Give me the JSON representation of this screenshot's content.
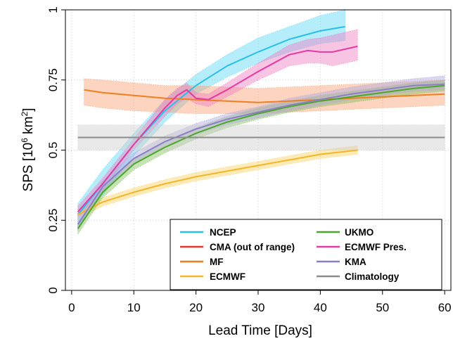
{
  "chart_data": {
    "type": "line",
    "title": "",
    "xlabel": "Lead Time [Days]",
    "ylabel_text": "SPS [10",
    "ylabel_sup1": "6",
    "ylabel_mid": " km",
    "ylabel_sup2": "2",
    "ylabel_end": "]",
    "xlim": [
      -1,
      61
    ],
    "ylim": [
      0,
      1
    ],
    "xticks": [
      0,
      10,
      20,
      30,
      40,
      50,
      60
    ],
    "xtick_labels": [
      "0",
      "10",
      "20",
      "30",
      "40",
      "50",
      "60"
    ],
    "yticks": [
      0,
      0.25,
      0.5,
      0.75,
      1
    ],
    "ytick_labels": [
      "0",
      "0.25",
      "0.5",
      "0.75",
      "1"
    ],
    "grid": true,
    "legend_placement": "bottom-right",
    "series": [
      {
        "name": "NCEP",
        "color": "#29bfe6",
        "band_color": "#5ad6f3",
        "x": [
          1,
          5,
          10,
          15,
          20,
          25,
          30,
          35,
          40,
          44
        ],
        "y": [
          0.27,
          0.38,
          0.52,
          0.64,
          0.73,
          0.8,
          0.85,
          0.895,
          0.925,
          0.94
        ],
        "lower": [
          0.23,
          0.34,
          0.48,
          0.6,
          0.7,
          0.76,
          0.81,
          0.85,
          0.88,
          0.89
        ],
        "upper": [
          0.31,
          0.43,
          0.56,
          0.68,
          0.77,
          0.84,
          0.9,
          0.94,
          0.98,
          1.0
        ]
      },
      {
        "name": "CMA (out of range)",
        "color": "#e8372f",
        "band_color": "#e8372f",
        "x": [],
        "y": [],
        "lower": [],
        "upper": []
      },
      {
        "name": "MF",
        "color": "#f07f1f",
        "band_color": "#f8a070",
        "x": [
          2,
          5,
          10,
          15,
          20,
          25,
          30,
          35,
          40,
          45,
          50,
          55,
          60
        ],
        "y": [
          0.715,
          0.705,
          0.695,
          0.685,
          0.68,
          0.675,
          0.67,
          0.675,
          0.68,
          0.685,
          0.69,
          0.695,
          0.7
        ],
        "lower": [
          0.66,
          0.65,
          0.64,
          0.635,
          0.63,
          0.63,
          0.63,
          0.635,
          0.64,
          0.645,
          0.65,
          0.655,
          0.66
        ],
        "upper": [
          0.755,
          0.75,
          0.74,
          0.73,
          0.73,
          0.725,
          0.72,
          0.725,
          0.73,
          0.735,
          0.74,
          0.745,
          0.75
        ]
      },
      {
        "name": "ECMWF",
        "color": "#f3b52a",
        "band_color": "#f9d060",
        "x": [
          1,
          5,
          10,
          15,
          20,
          25,
          30,
          35,
          40,
          46
        ],
        "y": [
          0.27,
          0.315,
          0.35,
          0.38,
          0.405,
          0.425,
          0.445,
          0.465,
          0.485,
          0.5
        ],
        "lower": [
          0.255,
          0.3,
          0.335,
          0.365,
          0.39,
          0.41,
          0.43,
          0.45,
          0.47,
          0.485
        ],
        "upper": [
          0.285,
          0.33,
          0.365,
          0.395,
          0.42,
          0.44,
          0.46,
          0.48,
          0.5,
          0.515
        ]
      },
      {
        "name": "UKMO",
        "color": "#4ca62a",
        "band_color": "#82c05e",
        "x": [
          1,
          5,
          10,
          15,
          20,
          25,
          30,
          35,
          40,
          45,
          50,
          55,
          60
        ],
        "y": [
          0.22,
          0.35,
          0.45,
          0.51,
          0.56,
          0.6,
          0.63,
          0.655,
          0.675,
          0.69,
          0.705,
          0.72,
          0.73
        ],
        "lower": [
          0.2,
          0.33,
          0.43,
          0.49,
          0.54,
          0.58,
          0.61,
          0.635,
          0.655,
          0.67,
          0.685,
          0.7,
          0.71
        ],
        "upper": [
          0.24,
          0.37,
          0.47,
          0.53,
          0.58,
          0.62,
          0.65,
          0.675,
          0.695,
          0.71,
          0.725,
          0.74,
          0.75
        ]
      },
      {
        "name": "ECMWF Pres.",
        "color": "#e33aa3",
        "band_color": "#f07cc4",
        "x": [
          1,
          5,
          10,
          15,
          17,
          18.5,
          20,
          22,
          25,
          30,
          35,
          38,
          40,
          42,
          46
        ],
        "y": [
          0.28,
          0.38,
          0.52,
          0.65,
          0.695,
          0.715,
          0.685,
          0.68,
          0.715,
          0.78,
          0.84,
          0.855,
          0.85,
          0.85,
          0.87
        ],
        "lower": [
          0.26,
          0.36,
          0.5,
          0.62,
          0.665,
          0.685,
          0.665,
          0.655,
          0.69,
          0.75,
          0.8,
          0.81,
          0.81,
          0.8,
          0.82
        ],
        "upper": [
          0.3,
          0.4,
          0.54,
          0.68,
          0.72,
          0.74,
          0.705,
          0.7,
          0.74,
          0.81,
          0.875,
          0.895,
          0.9,
          0.91,
          0.93
        ]
      },
      {
        "name": "KMA",
        "color": "#8b7ec8",
        "band_color": "#b2a6e0",
        "x": [
          1,
          5,
          10,
          15,
          20,
          25,
          30,
          35,
          40,
          45,
          50,
          55,
          60
        ],
        "y": [
          0.235,
          0.37,
          0.47,
          0.53,
          0.575,
          0.61,
          0.635,
          0.66,
          0.68,
          0.7,
          0.715,
          0.73,
          0.735
        ],
        "lower": [
          0.215,
          0.35,
          0.45,
          0.51,
          0.555,
          0.59,
          0.615,
          0.64,
          0.66,
          0.68,
          0.695,
          0.71,
          0.715
        ],
        "upper": [
          0.255,
          0.39,
          0.49,
          0.55,
          0.595,
          0.63,
          0.655,
          0.685,
          0.705,
          0.725,
          0.74,
          0.755,
          0.765
        ]
      },
      {
        "name": "Climatology",
        "color": "#8c8c8c",
        "band_color": "#cfcfcf",
        "x": [
          1,
          60
        ],
        "y": [
          0.545,
          0.545
        ],
        "lower": [
          0.5,
          0.5
        ],
        "upper": [
          0.59,
          0.59
        ]
      }
    ]
  }
}
